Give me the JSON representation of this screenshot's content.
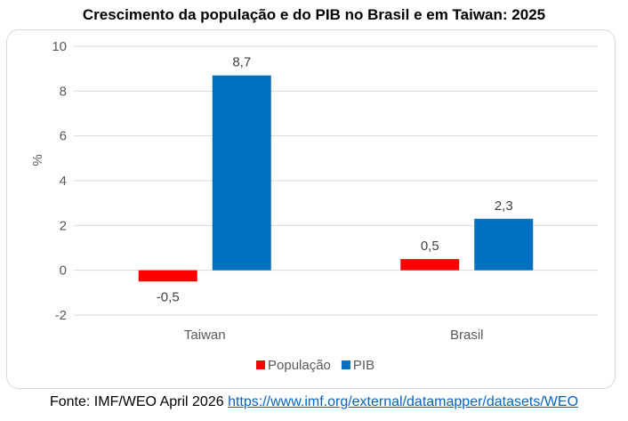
{
  "chart_data": {
    "type": "bar",
    "title": "Crescimento da população e do PIB no Brasil e em Taiwan: 2025",
    "categories": [
      "Taiwan",
      "Brasil"
    ],
    "series": [
      {
        "name": "População",
        "values": [
          -0.5,
          0.5
        ],
        "color": "#ff0000",
        "labels": [
          "-0,5",
          "0,5"
        ]
      },
      {
        "name": "PIB",
        "values": [
          8.7,
          2.3
        ],
        "color": "#0070c0",
        "labels": [
          "8,7",
          "2,3"
        ]
      }
    ],
    "xlabel": "",
    "ylabel": "%",
    "ylim": [
      -2,
      10
    ],
    "yticks": [
      -2,
      0,
      2,
      4,
      6,
      8,
      10
    ],
    "grid": true,
    "legend": "bottom"
  },
  "footer": {
    "source_text": "Fonte: IMF/WEO April 2026",
    "link": "https://www.imf.org/external/datamapper/datasets/WEO"
  }
}
